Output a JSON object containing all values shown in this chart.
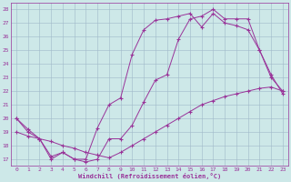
{
  "bg_color": "#cde8e8",
  "grid_color": "#a0b8c8",
  "line_color": "#993399",
  "xlabel": "Windchill (Refroidissement éolien,°C)",
  "xlim": [
    -0.5,
    23.5
  ],
  "ylim": [
    16.5,
    28.5
  ],
  "yticks": [
    17,
    18,
    19,
    20,
    21,
    22,
    23,
    24,
    25,
    26,
    27,
    28
  ],
  "xticks": [
    0,
    1,
    2,
    3,
    4,
    5,
    6,
    7,
    8,
    9,
    10,
    11,
    12,
    13,
    14,
    15,
    16,
    17,
    18,
    19,
    20,
    21,
    22,
    23
  ],
  "line1_x": [
    0,
    1,
    2,
    3,
    4,
    5,
    6,
    7,
    8,
    9,
    10,
    11,
    12,
    13,
    14,
    15,
    16,
    17,
    18,
    19,
    20,
    21,
    22,
    23
  ],
  "line1_y": [
    19.0,
    18.7,
    18.5,
    18.3,
    18.0,
    17.8,
    17.5,
    17.3,
    17.1,
    17.5,
    18.0,
    18.5,
    19.0,
    19.5,
    20.0,
    20.5,
    21.0,
    21.3,
    21.6,
    21.8,
    22.0,
    22.2,
    22.3,
    22.0
  ],
  "line2_x": [
    0,
    1,
    2,
    3,
    4,
    5,
    6,
    7,
    8,
    9,
    10,
    11,
    12,
    13,
    14,
    15,
    16,
    17,
    18,
    19,
    20,
    21,
    22,
    23
  ],
  "line2_y": [
    20.0,
    19.2,
    18.5,
    17.2,
    17.5,
    17.0,
    17.0,
    19.3,
    21.0,
    21.5,
    24.7,
    26.5,
    27.2,
    27.3,
    27.5,
    27.7,
    26.7,
    27.7,
    27.0,
    26.8,
    26.5,
    25.0,
    23.2,
    21.8
  ],
  "line3_x": [
    0,
    1,
    2,
    3,
    4,
    5,
    6,
    7,
    8,
    9,
    10,
    11,
    12,
    13,
    14,
    15,
    16,
    17,
    18,
    19,
    20,
    21,
    22,
    23
  ],
  "line3_y": [
    20.0,
    19.0,
    18.5,
    17.0,
    17.5,
    17.0,
    16.8,
    17.0,
    18.5,
    18.5,
    19.5,
    21.2,
    22.8,
    23.2,
    25.8,
    27.3,
    27.5,
    28.0,
    27.3,
    27.3,
    27.3,
    25.0,
    23.0,
    22.0
  ]
}
